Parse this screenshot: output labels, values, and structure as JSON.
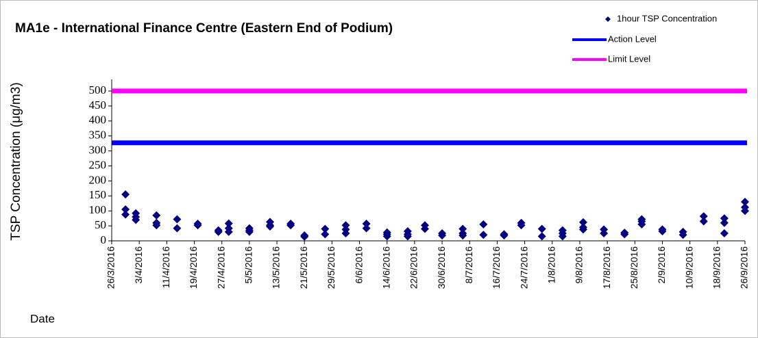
{
  "chart_data": {
    "type": "scatter",
    "title": "MA1e - International Finance Centre (Eastern End of Podium)",
    "y_label": "TSP Concentration (μg/m3)",
    "x_label": "Date",
    "xlim": [
      "26/3/2016",
      "26/9/2016"
    ],
    "xticks": [
      "26/3/2016",
      "3/4/2016",
      "11/4/2016",
      "19/4/2016",
      "27/4/2016",
      "5/5/2016",
      "13/5/2016",
      "21/5/2016",
      "29/5/2016",
      "6/6/2016",
      "14/6/2016",
      "22/6/2016",
      "30/6/2016",
      "8/7/2016",
      "16/7/2016",
      "24/7/2016",
      "1/8/2016",
      "9/8/2016",
      "17/8/2016",
      "25/8/2016",
      "2/9/2016",
      "10/9/2016",
      "18/9/2016",
      "26/9/2016"
    ],
    "ylim": [
      0,
      500
    ],
    "yticks": [
      0,
      50,
      100,
      150,
      200,
      250,
      300,
      350,
      400,
      450,
      500
    ],
    "grid": false,
    "legend": "top-right",
    "series": [
      {
        "name": "1hour TSP Concentration",
        "color": "#000080",
        "x": [
          "30/3/2016",
          "30/3/2016",
          "30/3/2016",
          "2/4/2016",
          "2/4/2016",
          "2/4/2016",
          "8/4/2016",
          "8/4/2016",
          "8/4/2016",
          "14/4/2016",
          "14/4/2016",
          "20/4/2016",
          "20/4/2016",
          "26/4/2016",
          "26/4/2016",
          "29/4/2016",
          "29/4/2016",
          "29/4/2016",
          "5/5/2016",
          "5/5/2016",
          "5/5/2016",
          "11/5/2016",
          "11/5/2016",
          "11/5/2016",
          "17/5/2016",
          "17/5/2016",
          "21/5/2016",
          "21/5/2016",
          "27/5/2016",
          "27/5/2016",
          "2/6/2016",
          "2/6/2016",
          "2/6/2016",
          "8/6/2016",
          "8/6/2016",
          "14/6/2016",
          "14/6/2016",
          "14/6/2016",
          "20/6/2016",
          "20/6/2016",
          "20/6/2016",
          "25/6/2016",
          "25/6/2016",
          "30/6/2016",
          "30/6/2016",
          "6/7/2016",
          "6/7/2016",
          "6/7/2016",
          "12/7/2016",
          "12/7/2016",
          "18/7/2016",
          "18/7/2016",
          "23/7/2016",
          "23/7/2016",
          "29/7/2016",
          "29/7/2016",
          "4/8/2016",
          "4/8/2016",
          "4/8/2016",
          "10/8/2016",
          "10/8/2016",
          "10/8/2016",
          "16/8/2016",
          "16/8/2016",
          "22/8/2016",
          "22/8/2016",
          "27/8/2016",
          "27/8/2016",
          "27/8/2016",
          "2/9/2016",
          "2/9/2016",
          "8/9/2016",
          "8/9/2016",
          "14/9/2016",
          "14/9/2016",
          "20/9/2016",
          "20/9/2016",
          "20/9/2016",
          "26/9/2016",
          "26/9/2016",
          "26/9/2016"
        ],
        "values": [
          155,
          105,
          88,
          92,
          80,
          70,
          85,
          60,
          52,
          72,
          42,
          57,
          52,
          35,
          30,
          58,
          42,
          30,
          42,
          35,
          30,
          63,
          52,
          48,
          57,
          52,
          18,
          14,
          40,
          22,
          52,
          38,
          25,
          57,
          42,
          28,
          22,
          15,
          32,
          22,
          15,
          52,
          40,
          25,
          18,
          40,
          25,
          18,
          55,
          20,
          22,
          18,
          60,
          52,
          40,
          15,
          35,
          25,
          15,
          62,
          45,
          38,
          38,
          25,
          27,
          22,
          72,
          65,
          55,
          38,
          32,
          30,
          20,
          82,
          65,
          75,
          60,
          25,
          130,
          112,
          100
        ]
      },
      {
        "name": "Action Level",
        "color": "#0000ff",
        "level": 327
      },
      {
        "name": "Limit Level",
        "color": "#ff00ff",
        "level": 500
      }
    ]
  }
}
